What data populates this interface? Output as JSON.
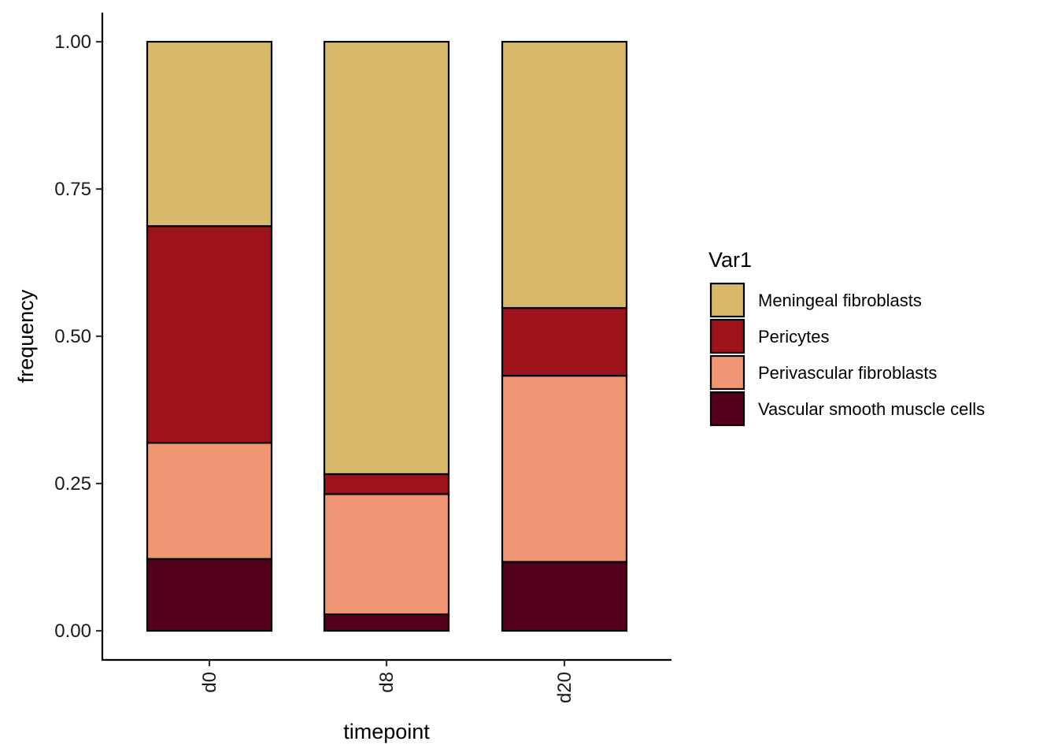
{
  "chart_data": {
    "type": "bar",
    "stacked": true,
    "xlabel": "timepoint",
    "ylabel": "frequency",
    "ylim": [
      0,
      1
    ],
    "y_ticks": [
      "0.00",
      "0.25",
      "0.50",
      "0.75",
      "1.00"
    ],
    "categories": [
      "d0",
      "d8",
      "d20"
    ],
    "legend_title": "Var1",
    "legend_placement": "right",
    "grid": false,
    "series": [
      {
        "name": "Vascular smooth muscle cells",
        "color": "#55001a",
        "values": [
          0.122,
          0.028,
          0.117
        ]
      },
      {
        "name": "Perivascular fibroblasts",
        "color": "#f09571",
        "values": [
          0.197,
          0.204,
          0.316
        ]
      },
      {
        "name": "Pericytes",
        "color": "#9e121a",
        "values": [
          0.368,
          0.034,
          0.115
        ]
      },
      {
        "name": "Meningeal fibroblasts",
        "color": "#d8b86b",
        "values": [
          0.313,
          0.734,
          0.452
        ]
      }
    ],
    "legend_order": [
      "Meningeal fibroblasts",
      "Pericytes",
      "Perivascular fibroblasts",
      "Vascular smooth muscle cells"
    ]
  }
}
